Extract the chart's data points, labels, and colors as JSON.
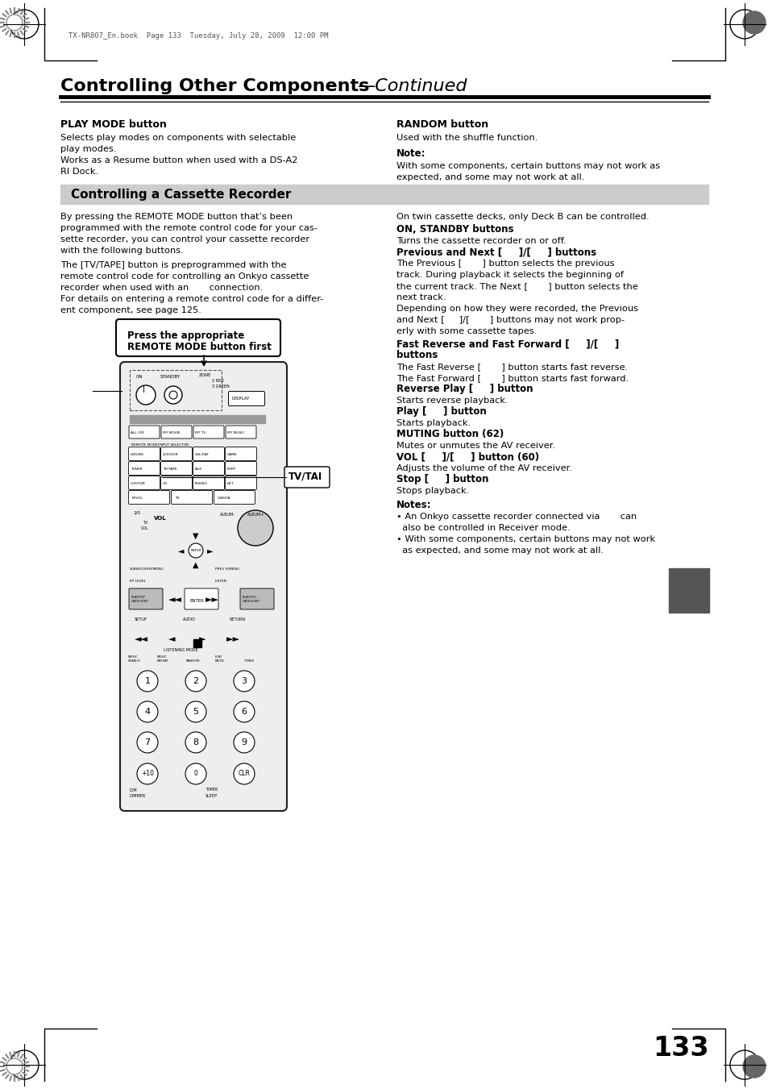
{
  "bg_color": "#ffffff",
  "header_text": "TX-NR807_En.book  Page 133  Tuesday, July 28, 2009  12:00 PM",
  "title_bold": "Controlling Other Components",
  "title_italic": "—Continued",
  "section_bg": "#cccccc",
  "section_header": "Controlling a Cassette Recorder",
  "play_mode_bold": "PLAY MODE button",
  "play_mode_text1": "Selects play modes on components with selectable",
  "play_mode_text2": "play modes.",
  "play_mode_text3": "Works as a Resume button when used with a DS-A2",
  "play_mode_text4": "RI Dock.",
  "random_bold": "RANDOM button",
  "random_text": "Used with the shuffle function.",
  "note_bold": "Note:",
  "note_text1": "With some components, certain buttons may not work as",
  "note_text2": "expected, and some may not work at all.",
  "cassette_intro1": "By pressing the REMOTE MODE button that’s been",
  "cassette_intro2": "programmed with the remote control code for your cas-",
  "cassette_intro3": "sette recorder, you can control your cassette recorder",
  "cassette_intro4": "with the following buttons.",
  "cassette_intro5": "The [TV/TAPE] button is preprogrammed with the",
  "cassette_intro6": "remote control code for controlling an Onkyo cassette",
  "cassette_intro7": "recorder when used with an       connection.",
  "cassette_intro8": "For details on entering a remote control code for a differ-",
  "cassette_intro9": "ent component, see page 125.",
  "press_box1": "Press the appropriate",
  "press_box2": "REMOTE MODE button first",
  "twin_text": "On twin cassette decks, only Deck B can be controlled.",
  "on_standby_bold": "ON, STANDBY buttons",
  "on_standby_text": "Turns the cassette recorder on or off.",
  "prev_next_bold": "Previous and Next [     ]/[     ] buttons",
  "prev_next_t1": "The Previous [       ] button selects the previous",
  "prev_next_t2": "track. During playback it selects the beginning of",
  "prev_next_t3": "the current track. The Next [       ] button selects the",
  "prev_next_t4": "next track.",
  "prev_next_t5": "Depending on how they were recorded, the Previous",
  "prev_next_t6": "and Next [     ]/[       ] buttons may not work prop-",
  "prev_next_t7": "erly with some cassette tapes.",
  "fast_bold1": "Fast Reverse and Fast Forward [     ]/[     ]",
  "fast_bold2": "buttons",
  "fast_t1": "The Fast Reverse [       ] button starts fast reverse.",
  "fast_t2": "The Fast Forward [       ] button starts fast forward.",
  "rev_play_bold": "Reverse Play [     ] button",
  "rev_play_text": "Starts reverse playback.",
  "play_bold": "Play [     ] button",
  "play_text": "Starts playback.",
  "muting_bold": "MUTING button (62)",
  "muting_text": "Mutes or unmutes the AV receiver.",
  "vol_bold": "VOL [     ]/[     ] button (60)",
  "vol_text": "Adjusts the volume of the AV receiver.",
  "stop_bold": "Stop [     ] button",
  "stop_text": "Stops playback.",
  "notes_bold": "Notes:",
  "note1": "• An Onkyo cassette recorder connected via       can",
  "note1b": "  also be controlled in Receiver mode.",
  "note2": "• With some components, certain buttons may not work",
  "note2b": "  as expected, and some may not work at all.",
  "tv_tape_label": "TV/TAI",
  "page_number": "133"
}
